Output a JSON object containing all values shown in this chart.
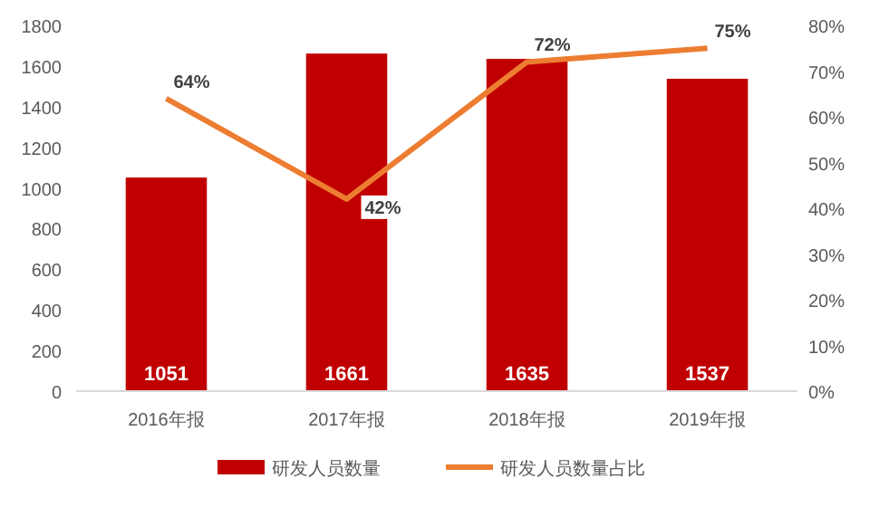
{
  "chart_data": {
    "type": "bar",
    "categories": [
      "2016年报",
      "2017年报",
      "2018年报",
      "2019年报"
    ],
    "series": [
      {
        "name": "研发人员数量",
        "color": "#c00000",
        "values": [
          1051,
          1661,
          1635,
          1537
        ]
      },
      {
        "name": "研发人员数量占比",
        "type": "line",
        "axis": "y2",
        "color": "#ed7d31",
        "values": [
          64,
          42,
          72,
          75
        ],
        "value_labels": [
          "64%",
          "42%",
          "72%",
          "75%"
        ]
      }
    ],
    "ylim": [
      0,
      1800
    ],
    "yticks": [
      0,
      200,
      400,
      600,
      800,
      1000,
      1200,
      1400,
      1600,
      1800
    ],
    "y2lim": [
      0,
      80
    ],
    "y2ticks": [
      {
        "value": 0,
        "label": "0%"
      },
      {
        "value": 10,
        "label": "10%"
      },
      {
        "value": 20,
        "label": "20%"
      },
      {
        "value": 30,
        "label": "30%"
      },
      {
        "value": 40,
        "label": "40%"
      },
      {
        "value": 50,
        "label": "50%"
      },
      {
        "value": 60,
        "label": "60%"
      },
      {
        "value": 70,
        "label": "70%"
      },
      {
        "value": 80,
        "label": "80%"
      }
    ],
    "data_labels": true,
    "legend": "bottom",
    "marker": "none"
  }
}
